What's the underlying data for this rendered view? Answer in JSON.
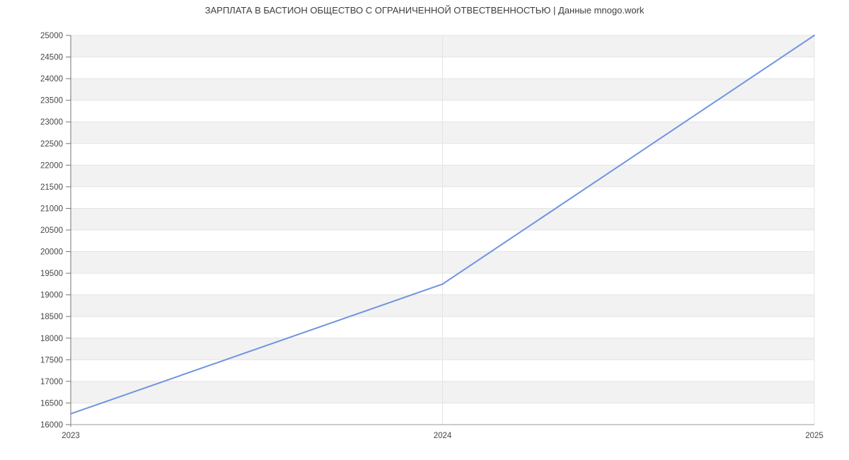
{
  "page": {
    "background": "#ffffff"
  },
  "chart_data": {
    "type": "line",
    "title": "ЗАРПЛАТА В БАСТИОН ОБЩЕСТВО С ОГРАНИЧЕННОЙ ОТВЕСТВЕННОСТЬЮ | Данные mnogo.work",
    "categories": [
      "2023",
      "2024",
      "2025"
    ],
    "series": [
      {
        "name": "ЗАРПЛАТА",
        "values": [
          16250,
          19250,
          25000
        ]
      }
    ],
    "xlabel": "",
    "ylabel": "",
    "ylim": [
      16000,
      25000
    ],
    "ytick_step": 500,
    "y_tick_labels": [
      "16000",
      "16500",
      "17000",
      "17500",
      "18000",
      "18500",
      "19000",
      "19500",
      "20000",
      "20500",
      "21000",
      "21500",
      "22000",
      "22500",
      "23000",
      "23500",
      "24000",
      "24500",
      "25000"
    ],
    "grid": true,
    "legend": "none",
    "plot_style": "alternating horizontal bands every 500 units",
    "colors": {
      "line": "#7094e0",
      "band_gray": "#f2f2f2",
      "band_white": "#ffffff",
      "gridline": "#e4e4e4",
      "y_axis": "#757575",
      "x_axis": "#9a9a9a",
      "tick_text": "#474747",
      "title_text": "#3d3d3d",
      "background": "#ffffff"
    }
  }
}
